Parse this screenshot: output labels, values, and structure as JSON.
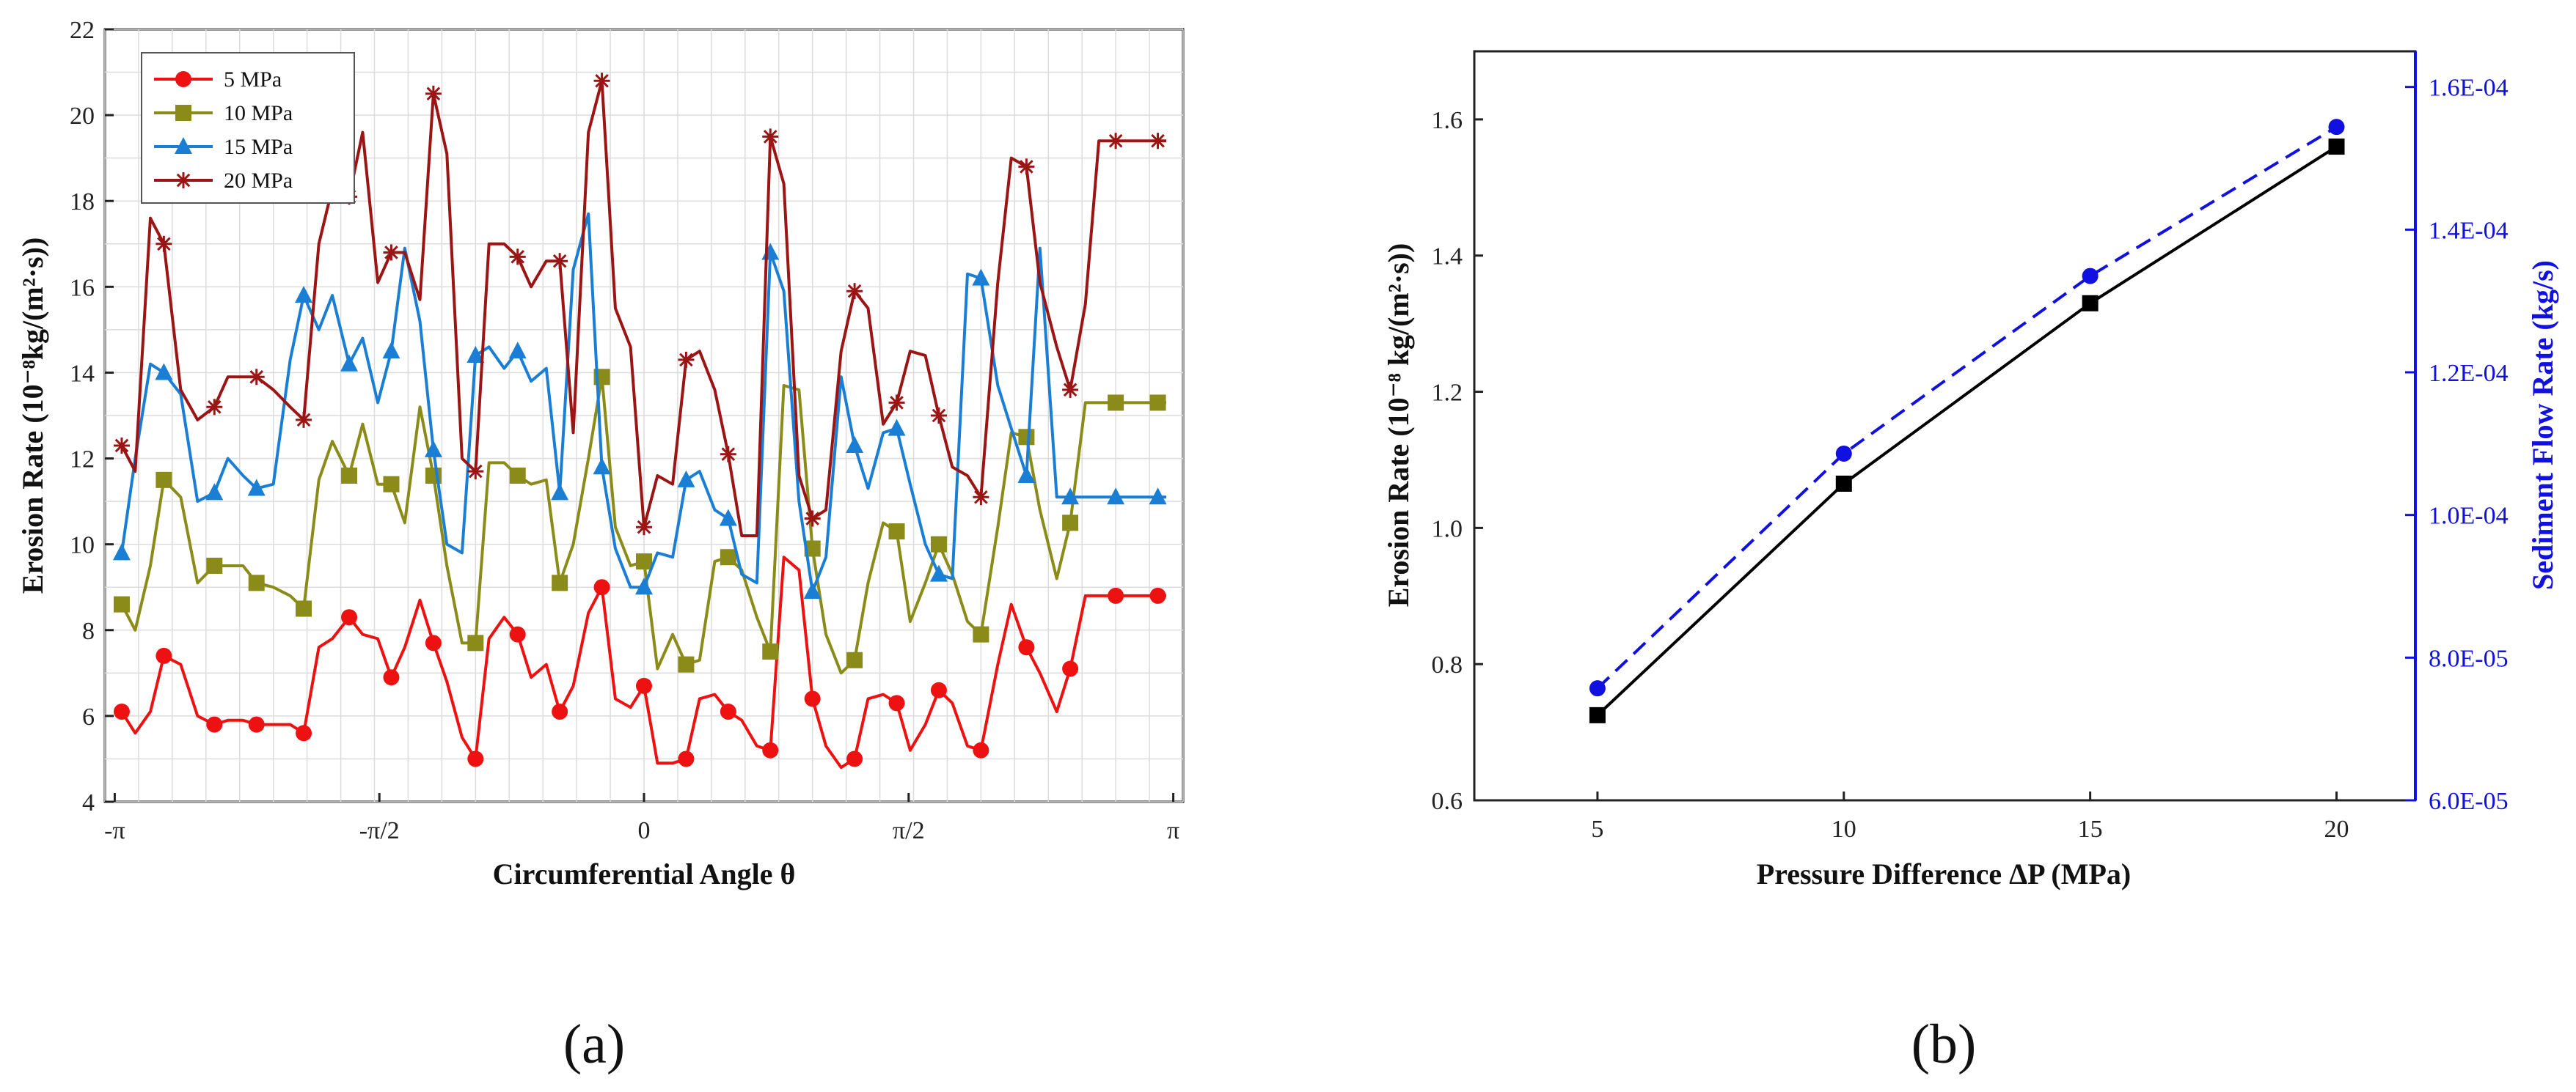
{
  "panel_labels": {
    "a": "(a)",
    "b": "(b)"
  },
  "chart_data": [
    {
      "type": "line",
      "id": "a",
      "title": "",
      "xlabel": "Circumferential Angle θ",
      "ylabel": "Erosion Rate (10⁻⁸kg/(m²·s))",
      "xlim": [
        -3.2,
        3.2
      ],
      "ylim": [
        4,
        22
      ],
      "xticks": [
        -3.1416,
        -1.5708,
        0,
        1.5708,
        3.1416
      ],
      "xtick_labels": [
        "-π",
        "-π/2",
        "0",
        "π/2",
        "π"
      ],
      "yticks": [
        4,
        6,
        8,
        10,
        12,
        14,
        16,
        18,
        20,
        22
      ],
      "ytick_labels": [
        "4",
        "6",
        "8",
        "10",
        "12",
        "14",
        "16",
        "18",
        "20",
        "22"
      ],
      "grid": true,
      "legend": "top-left",
      "x": [
        -3.1,
        -3.02,
        -2.93,
        -2.85,
        -2.75,
        -2.65,
        -2.55,
        -2.47,
        -2.38,
        -2.3,
        -2.2,
        -2.1,
        -2.02,
        -1.93,
        -1.85,
        -1.75,
        -1.67,
        -1.58,
        -1.5,
        -1.42,
        -1.33,
        -1.25,
        -1.17,
        -1.08,
        -1.0,
        -0.92,
        -0.83,
        -0.75,
        -0.67,
        -0.58,
        -0.5,
        -0.42,
        -0.33,
        -0.25,
        -0.17,
        -0.08,
        0.0,
        0.08,
        0.17,
        0.25,
        0.33,
        0.42,
        0.5,
        0.58,
        0.67,
        0.75,
        0.83,
        0.92,
        1.0,
        1.08,
        1.17,
        1.25,
        1.33,
        1.42,
        1.5,
        1.58,
        1.67,
        1.75,
        1.83,
        1.92,
        2.0,
        2.1,
        2.18,
        2.27,
        2.35,
        2.45,
        2.53,
        2.62,
        2.7,
        2.8,
        2.88,
        2.97,
        3.05,
        3.1
      ],
      "series": [
        {
          "name": "5 MPa",
          "color": "#ee1111",
          "marker": "circle",
          "values": [
            6.1,
            5.6,
            6.1,
            7.4,
            7.2,
            6.0,
            5.8,
            5.9,
            5.9,
            5.8,
            5.8,
            5.8,
            5.6,
            7.6,
            7.8,
            8.3,
            7.9,
            7.8,
            6.9,
            7.6,
            8.7,
            7.7,
            6.8,
            5.5,
            5.0,
            7.8,
            8.3,
            7.9,
            6.9,
            7.2,
            6.1,
            6.7,
            8.4,
            9.0,
            6.4,
            6.2,
            6.7,
            4.9,
            4.9,
            5.0,
            6.4,
            6.5,
            6.1,
            5.9,
            5.3,
            5.2,
            9.7,
            9.4,
            6.4,
            5.3,
            4.8,
            5.0,
            6.4,
            6.5,
            6.3,
            5.2,
            5.8,
            6.6,
            6.3,
            5.3,
            5.2,
            7.2,
            8.6,
            7.6,
            7.0,
            6.1,
            7.1,
            8.8,
            8.8,
            8.8,
            8.8,
            8.8,
            8.8,
            8.8
          ]
        },
        {
          "name": "10 MPa",
          "color": "#8b8b1a",
          "marker": "square",
          "values": [
            8.6,
            8.0,
            9.5,
            11.5,
            11.1,
            9.1,
            9.5,
            9.5,
            9.5,
            9.1,
            9.0,
            8.8,
            8.5,
            11.5,
            12.4,
            11.6,
            12.8,
            11.4,
            11.4,
            10.5,
            13.2,
            11.6,
            9.5,
            7.7,
            7.7,
            11.9,
            11.9,
            11.6,
            11.4,
            11.5,
            9.1,
            10.0,
            12.0,
            13.9,
            10.4,
            9.5,
            9.6,
            7.1,
            7.9,
            7.2,
            7.3,
            9.6,
            9.7,
            9.4,
            8.3,
            7.5,
            13.7,
            13.6,
            9.9,
            7.9,
            7.0,
            7.3,
            9.1,
            10.5,
            10.3,
            8.2,
            9.1,
            10.0,
            9.3,
            8.2,
            7.9,
            10.4,
            12.6,
            12.5,
            10.8,
            9.2,
            10.5,
            13.3,
            13.3,
            13.3,
            13.3,
            13.3,
            13.3,
            13.3
          ]
        },
        {
          "name": "15 MPa",
          "color": "#1a7fd4",
          "marker": "triangle",
          "values": [
            9.8,
            12.0,
            14.2,
            14.0,
            13.5,
            11.0,
            11.2,
            12.0,
            11.6,
            11.3,
            11.4,
            14.3,
            15.8,
            15.0,
            15.8,
            14.2,
            14.8,
            13.3,
            14.5,
            16.9,
            15.2,
            12.2,
            10.0,
            9.8,
            14.4,
            14.6,
            14.1,
            14.5,
            13.8,
            14.1,
            11.2,
            16.4,
            17.7,
            11.8,
            9.9,
            9.0,
            9.0,
            9.8,
            9.7,
            11.5,
            11.7,
            10.8,
            10.6,
            9.3,
            9.1,
            16.8,
            15.9,
            11.0,
            8.9,
            9.7,
            13.9,
            12.3,
            11.3,
            12.6,
            12.7,
            11.4,
            10.0,
            9.3,
            9.2,
            16.3,
            16.2,
            13.7,
            12.7,
            11.6,
            16.9,
            11.1,
            11.1,
            11.1,
            11.1,
            11.1,
            11.1,
            11.1,
            11.1,
            11.1
          ]
        },
        {
          "name": "20 MPa",
          "color": "#9b1515",
          "marker": "star",
          "values": [
            12.3,
            11.7,
            17.6,
            17.0,
            13.6,
            12.9,
            13.2,
            13.9,
            13.9,
            13.9,
            13.6,
            13.2,
            12.9,
            17.0,
            18.3,
            18.1,
            19.6,
            16.1,
            16.8,
            16.8,
            15.7,
            20.5,
            19.1,
            12.0,
            11.7,
            17.0,
            17.0,
            16.7,
            16.0,
            16.6,
            16.6,
            12.6,
            19.6,
            20.8,
            15.5,
            14.6,
            10.4,
            11.6,
            11.4,
            14.3,
            14.5,
            13.6,
            12.1,
            10.2,
            10.2,
            19.5,
            18.4,
            11.6,
            10.6,
            10.8,
            14.5,
            15.9,
            15.5,
            12.8,
            13.3,
            14.5,
            14.4,
            13.0,
            11.8,
            11.6,
            11.1,
            16.1,
            19.0,
            18.8,
            16.1,
            14.6,
            13.6,
            15.6,
            19.4,
            19.4,
            19.4,
            19.4,
            19.4,
            19.4
          ]
        }
      ]
    },
    {
      "type": "line",
      "id": "b",
      "title": "",
      "xlabel": "Pressure Difference ΔP (MPa)",
      "ylabel_left": "Erosion Rate (10⁻⁸ kg/(m²·s))",
      "ylabel_right": "Sediment Flow Rate (kg/s)",
      "categories": [
        5,
        10,
        15,
        20
      ],
      "xlim": [
        2.5,
        21.6
      ],
      "ylim_left": [
        0.6,
        1.7
      ],
      "ylim_right": [
        6e-05,
        0.000165
      ],
      "xticks": [
        5,
        10,
        15,
        20
      ],
      "xtick_labels": [
        "5",
        "10",
        "15",
        "20"
      ],
      "yticks_left": [
        0.6,
        0.8,
        1.0,
        1.2,
        1.4,
        1.6
      ],
      "ytick_labels_left": [
        "0.6",
        "0.8",
        "1.0",
        "1.2",
        "1.4",
        "1.6"
      ],
      "yticks_right": [
        6e-05,
        8e-05,
        0.0001,
        0.00012,
        0.00014,
        0.00016
      ],
      "ytick_labels_right": [
        "6.0E-05",
        "8.0E-05",
        "1.0E-04",
        "1.2E-04",
        "1.4E-04",
        "1.6E-04"
      ],
      "grid": false,
      "series": [
        {
          "name": "Erosion Rate",
          "axis": "left",
          "color": "#000000",
          "marker": "square",
          "line": "solid",
          "values": [
            0.725,
            1.065,
            1.33,
            1.56
          ]
        },
        {
          "name": "Sediment Flow Rate",
          "axis": "right",
          "color": "#1010e0",
          "marker": "circle",
          "line": "dashed",
          "values": [
            7.57e-05,
            0.0001086,
            0.0001335,
            0.0001544
          ]
        }
      ],
      "right_axis_color": "#1010e0"
    }
  ]
}
